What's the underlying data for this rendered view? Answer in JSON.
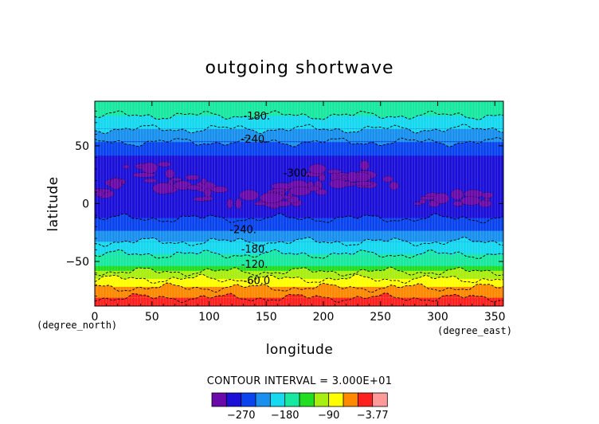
{
  "chart_data": {
    "type": "heatmap",
    "title": "outgoing shortwave",
    "xlabel": "longitude",
    "ylabel": "latitude",
    "x_unit": "(degree_east)",
    "y_unit": "(degree_north)",
    "xlim": [
      0,
      357.5
    ],
    "ylim": [
      -88.5,
      88.5
    ],
    "x_ticks": [
      0,
      50,
      100,
      150,
      200,
      250,
      300,
      350
    ],
    "y_ticks": [
      -50,
      0,
      50
    ],
    "contour_interval_text": "CONTOUR INTERVAL = 3.000E+01",
    "contour_interval": 30,
    "colorbar": {
      "levels": [
        -300,
        -270,
        -240,
        -210,
        -180,
        -150,
        -120,
        -90,
        -60,
        -30,
        -3.77
      ],
      "colors": [
        "#6a0aa8",
        "#1c10d8",
        "#0a44ee",
        "#1a90ee",
        "#16d8ee",
        "#18e8a0",
        "#22dd22",
        "#a8ee10",
        "#ffff00",
        "#ff8a00",
        "#ff2020",
        "#ff9a9a"
      ],
      "tick_labels": [
        "-270",
        "-180",
        "-90",
        "-3.77"
      ]
    },
    "lat_profile": {
      "lat": [
        -88.5,
        -84,
        -78,
        -72,
        -66,
        -60,
        -54,
        -48,
        -42,
        -36,
        -30,
        -24,
        -18,
        -12,
        -6,
        0,
        6,
        12,
        18,
        24,
        30,
        36,
        42,
        48,
        54,
        60,
        66,
        72,
        78,
        84,
        88.5
      ],
      "value": [
        -10,
        -22,
        -40,
        -62,
        -86,
        -112,
        -150,
        -168,
        -185,
        -200,
        -220,
        -240,
        -256,
        -272,
        -280,
        -282,
        -286,
        -290,
        -294,
        -296,
        -290,
        -282,
        -270,
        -254,
        -238,
        -222,
        -206,
        -190,
        -176,
        -162,
        -152
      ]
    },
    "contour_labels": [
      {
        "text": "-180.",
        "lon": 130,
        "lat": 76
      },
      {
        "text": "-240.",
        "lon": 128,
        "lat": 56
      },
      {
        "text": "-300.",
        "lon": 165,
        "lat": 27
      },
      {
        "text": "-240.",
        "lon": 118,
        "lat": -22
      },
      {
        "text": "-180.",
        "lon": 128,
        "lat": -39
      },
      {
        "text": "-120.",
        "lon": 128,
        "lat": -52
      },
      {
        "text": "-60.0",
        "lon": 130,
        "lat": -66
      }
    ]
  }
}
